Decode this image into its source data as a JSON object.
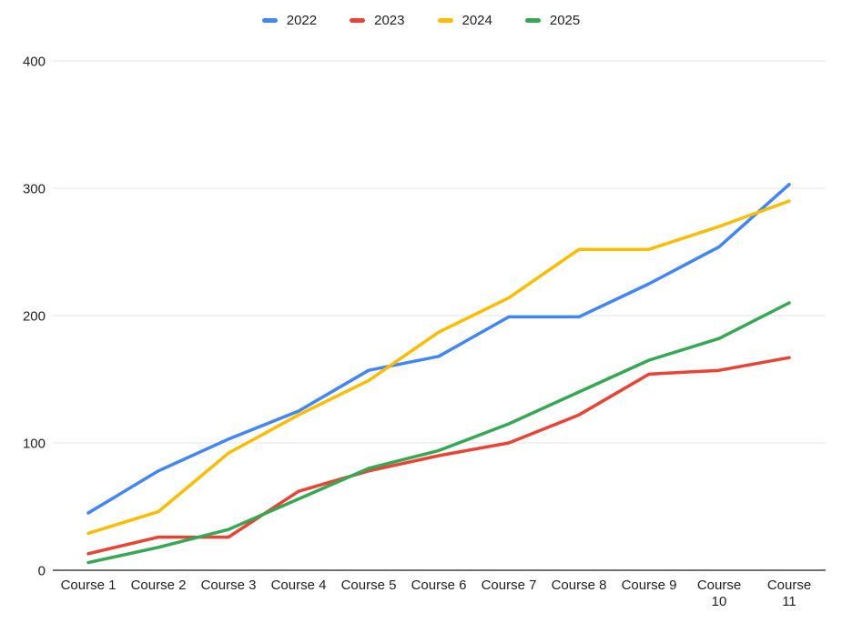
{
  "page": {
    "background": "#ffffff"
  },
  "chart_data": {
    "type": "line",
    "title": "",
    "xlabel": "",
    "ylabel": "",
    "categories": [
      "Course 1",
      "Course 2",
      "Course 3",
      "Course 4",
      "Course 5",
      "Course 6",
      "Course 7",
      "Course 8",
      "Course 9",
      "Course 10",
      "Course 11"
    ],
    "series": [
      {
        "name": "2022",
        "color": "#4285f4",
        "values": [
          45,
          78,
          103,
          125,
          157,
          168,
          199,
          199,
          225,
          254,
          303
        ]
      },
      {
        "name": "2023",
        "color": "#ea4335",
        "values": [
          13,
          26,
          26,
          62,
          78,
          90,
          100,
          122,
          154,
          157,
          167
        ]
      },
      {
        "name": "2024",
        "color": "#fbbc04",
        "values": [
          29,
          46,
          92,
          122,
          149,
          187,
          214,
          252,
          252,
          270,
          290
        ]
      },
      {
        "name": "2025",
        "color": "#34a853",
        "values": [
          6,
          18,
          32,
          56,
          80,
          94,
          115,
          140,
          165,
          182,
          210
        ]
      }
    ],
    "ylim": [
      0,
      400
    ],
    "yticks": [
      0,
      100,
      200,
      300,
      400
    ],
    "legend_position": "top",
    "grid": "horizontal",
    "grid_color": "#e6e6e6",
    "axis_line_color": "#424242",
    "tick_label_color": "#212121"
  }
}
